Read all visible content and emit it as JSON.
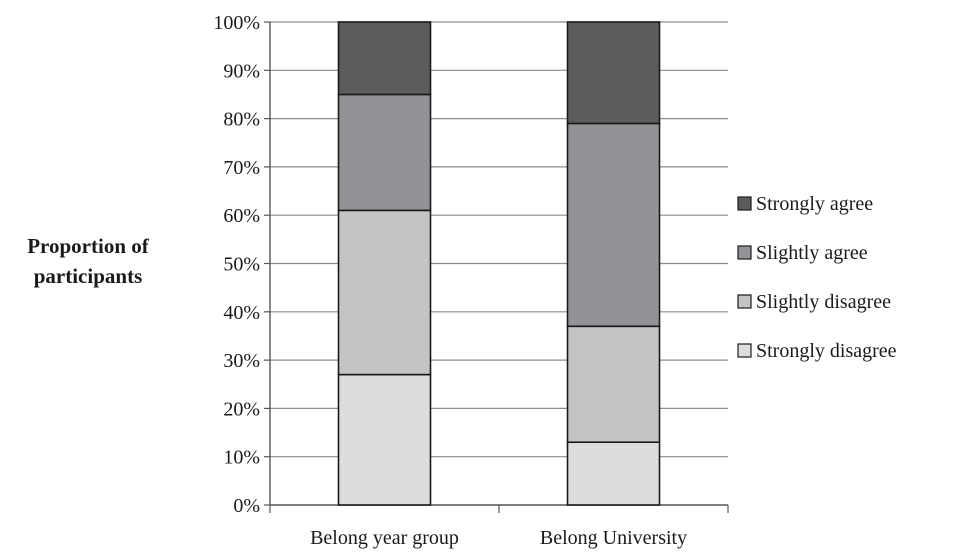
{
  "chart_data": {
    "type": "bar",
    "stacked": true,
    "normalized": true,
    "title": "",
    "xlabel": "",
    "ylabel": [
      "Proportion of",
      "participants"
    ],
    "ylim": [
      0,
      100
    ],
    "yticks": [
      "0%",
      "10%",
      "20%",
      "30%",
      "40%",
      "50%",
      "60%",
      "70%",
      "80%",
      "90%",
      "100%"
    ],
    "grid": "horizontal",
    "legend_position": "right",
    "categories": [
      "Belong year group",
      "Belong University"
    ],
    "series": [
      {
        "name": "Strongly disagree",
        "color": "#dcdddf",
        "values": [
          27,
          13
        ]
      },
      {
        "name": "Slightly disagree",
        "color": "#c3c4c6",
        "values": [
          34,
          24
        ]
      },
      {
        "name": "Slightly agree",
        "color": "#929396",
        "values": [
          24,
          42
        ]
      },
      {
        "name": "Strongly agree",
        "color": "#5c5c5e",
        "values": [
          15,
          21
        ]
      }
    ],
    "legend_order": [
      "Strongly agree",
      "Slightly agree",
      "Slightly disagree",
      "Strongly disagree"
    ]
  }
}
